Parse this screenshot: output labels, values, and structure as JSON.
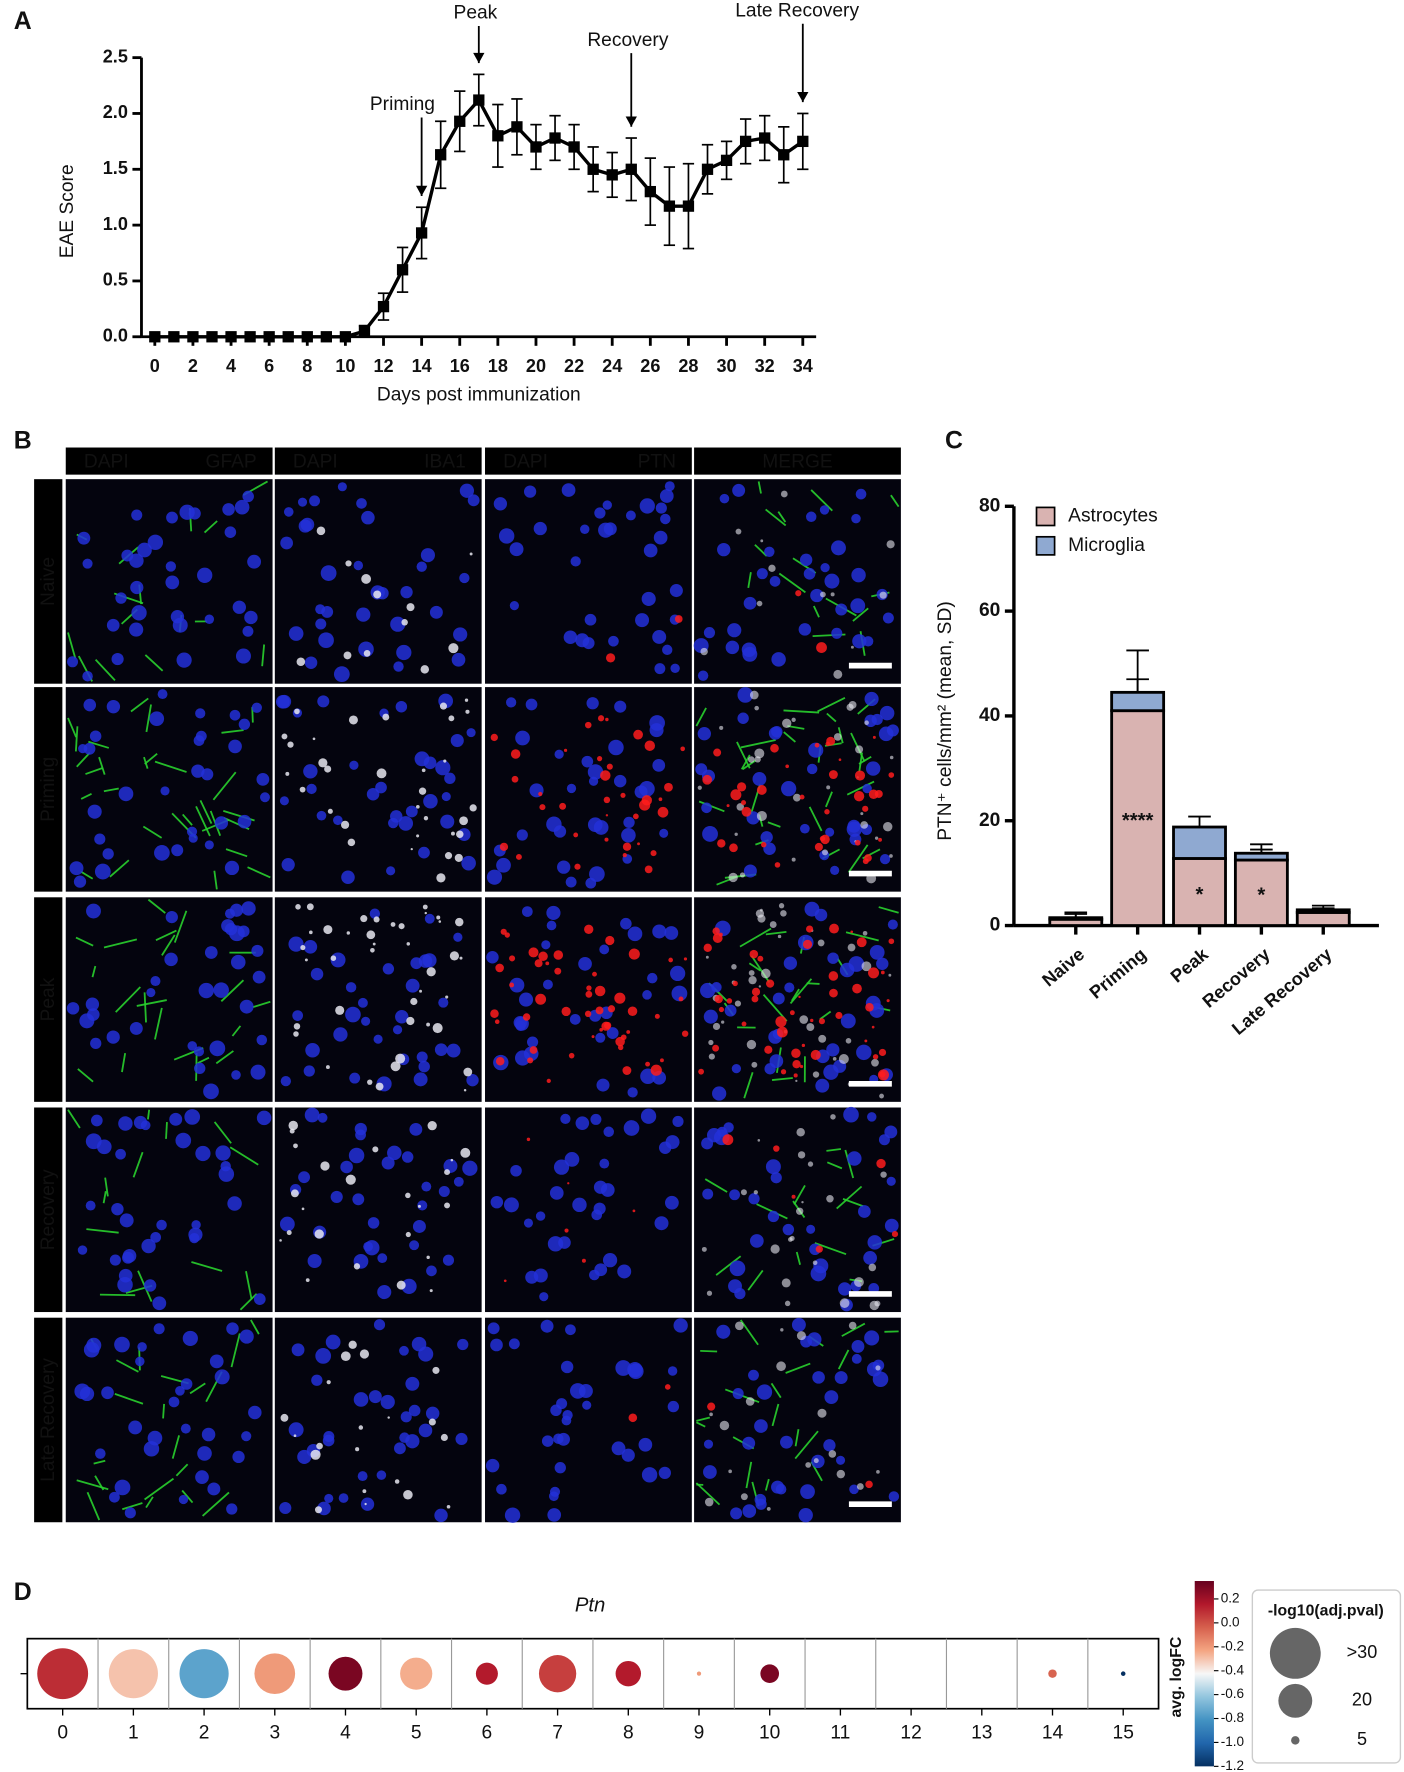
{
  "panel_labels": [
    "A",
    "B",
    "C",
    "D"
  ],
  "micrograph": {
    "columns": [
      [
        "DAPI",
        "GFAP"
      ],
      [
        "DAPI",
        "IBA1"
      ],
      [
        "DAPI",
        "PTN"
      ],
      [
        "MERGE"
      ]
    ],
    "rows": [
      "Naive",
      "Priming",
      "Peak",
      "Recovery",
      "Late Recovery"
    ]
  },
  "chart_data": [
    {
      "type": "line",
      "x_label": "Days post immunization",
      "y_label": "EAE Score",
      "x": [
        0,
        1,
        2,
        3,
        4,
        5,
        6,
        7,
        8,
        9,
        10,
        11,
        12,
        13,
        14,
        15,
        16,
        17,
        18,
        19,
        20,
        21,
        22,
        23,
        24,
        25,
        26,
        27,
        28,
        29,
        30,
        31,
        32,
        33,
        34
      ],
      "values": [
        0,
        0,
        0,
        0,
        0,
        0,
        0,
        0,
        0,
        0,
        0,
        0.05,
        0.27,
        0.6,
        0.93,
        1.63,
        1.93,
        2.12,
        1.8,
        1.88,
        1.7,
        1.78,
        1.7,
        1.5,
        1.45,
        1.5,
        1.3,
        1.17,
        1.17,
        1.5,
        1.58,
        1.75,
        1.78,
        1.63,
        1.75
      ],
      "errors": [
        0,
        0,
        0,
        0,
        0,
        0,
        0,
        0,
        0,
        0,
        0,
        0.05,
        0.12,
        0.2,
        0.23,
        0.3,
        0.27,
        0.23,
        0.28,
        0.25,
        0.2,
        0.2,
        0.2,
        0.2,
        0.2,
        0.28,
        0.3,
        0.35,
        0.38,
        0.22,
        0.17,
        0.2,
        0.2,
        0.25,
        0.25
      ],
      "color": "#000000",
      "xlim": [
        -0.7,
        34.7
      ],
      "ylim": [
        0,
        2.5
      ],
      "xticks": [
        0,
        2,
        4,
        6,
        8,
        10,
        12,
        14,
        16,
        18,
        20,
        22,
        24,
        26,
        28,
        30,
        32,
        34
      ],
      "yticks": [
        {
          "value": 0,
          "label": "0.0"
        },
        0.5,
        {
          "value": 1,
          "label": "1.0"
        },
        1.5,
        {
          "value": 2,
          "label": "2.0"
        },
        2.5
      ],
      "annotations": [
        {
          "text": "Priming",
          "x": 14
        },
        {
          "text": "Peak",
          "x": 17
        },
        {
          "text": "Recovery",
          "x": 25
        },
        {
          "text": "Late Recovery",
          "x": 34
        }
      ]
    },
    {
      "type": "stacked_bar",
      "y_label": "PTN⁺ cells/mm² (mean, SD)",
      "categories": [
        "Naive",
        "Priming",
        "Peak",
        "Recovery",
        "Late Recovery"
      ],
      "series": [
        {
          "name": "Astrocytes",
          "color": "#d9b3b1",
          "values": [
            1.2,
            41,
            12.8,
            12.5,
            2.5
          ],
          "errors": [
            1,
            6,
            4.2,
            2,
            0.8
          ]
        },
        {
          "name": "Microglia",
          "color": "#8fa9d1",
          "values": [
            0.3,
            3.5,
            6,
            1.3,
            0.5
          ],
          "errors": [
            1,
            8,
            2,
            1.7,
            0.8
          ]
        }
      ],
      "ylim": [
        0,
        80
      ],
      "yticks": [
        0,
        20,
        40,
        60,
        80
      ],
      "legend": "upper left",
      "annotations": [
        {
          "category": "Priming",
          "text": "****"
        },
        {
          "category": "Peak",
          "text": "*"
        },
        {
          "category": "Recovery",
          "text": "*"
        }
      ]
    },
    {
      "type": "dot",
      "title": "Ptn",
      "categories": [
        "0",
        "1",
        "2",
        "3",
        "4",
        "5",
        "6",
        "7",
        "8",
        "9",
        "10",
        "11",
        "12",
        "13",
        "14",
        "15"
      ],
      "values": [
        0.1,
        -0.3,
        -0.75,
        -0.2,
        0.3,
        -0.25,
        0.15,
        0.05,
        0.15,
        -0.2,
        0.3,
        null,
        null,
        null,
        -0.05,
        -1.2
      ],
      "sizes": [
        31,
        29,
        29,
        24,
        20,
        19,
        13,
        22,
        15,
        2.5,
        11,
        null,
        null,
        null,
        5,
        2.7
      ],
      "color_label": "avg. logFC",
      "clim": [
        -1.2,
        0.35
      ],
      "colormap": [
        "#053061",
        "#2166ac",
        "#4393c3",
        "#92c5de",
        "#f7f7f7",
        "#f4a582",
        "#d6604d",
        "#b2182b",
        "#67001f"
      ],
      "cticks": [
        0.2,
        {
          "value": 0,
          "label": "0.0"
        },
        -0.2,
        -0.4,
        -0.6,
        -0.8,
        {
          "value": -1,
          "label": "-1.0"
        },
        -1.2
      ],
      "size_label": "-log10(adj.pval)",
      "size_legend": [
        {
          "value": 30,
          "label": ">30"
        },
        20,
        5
      ]
    }
  ]
}
